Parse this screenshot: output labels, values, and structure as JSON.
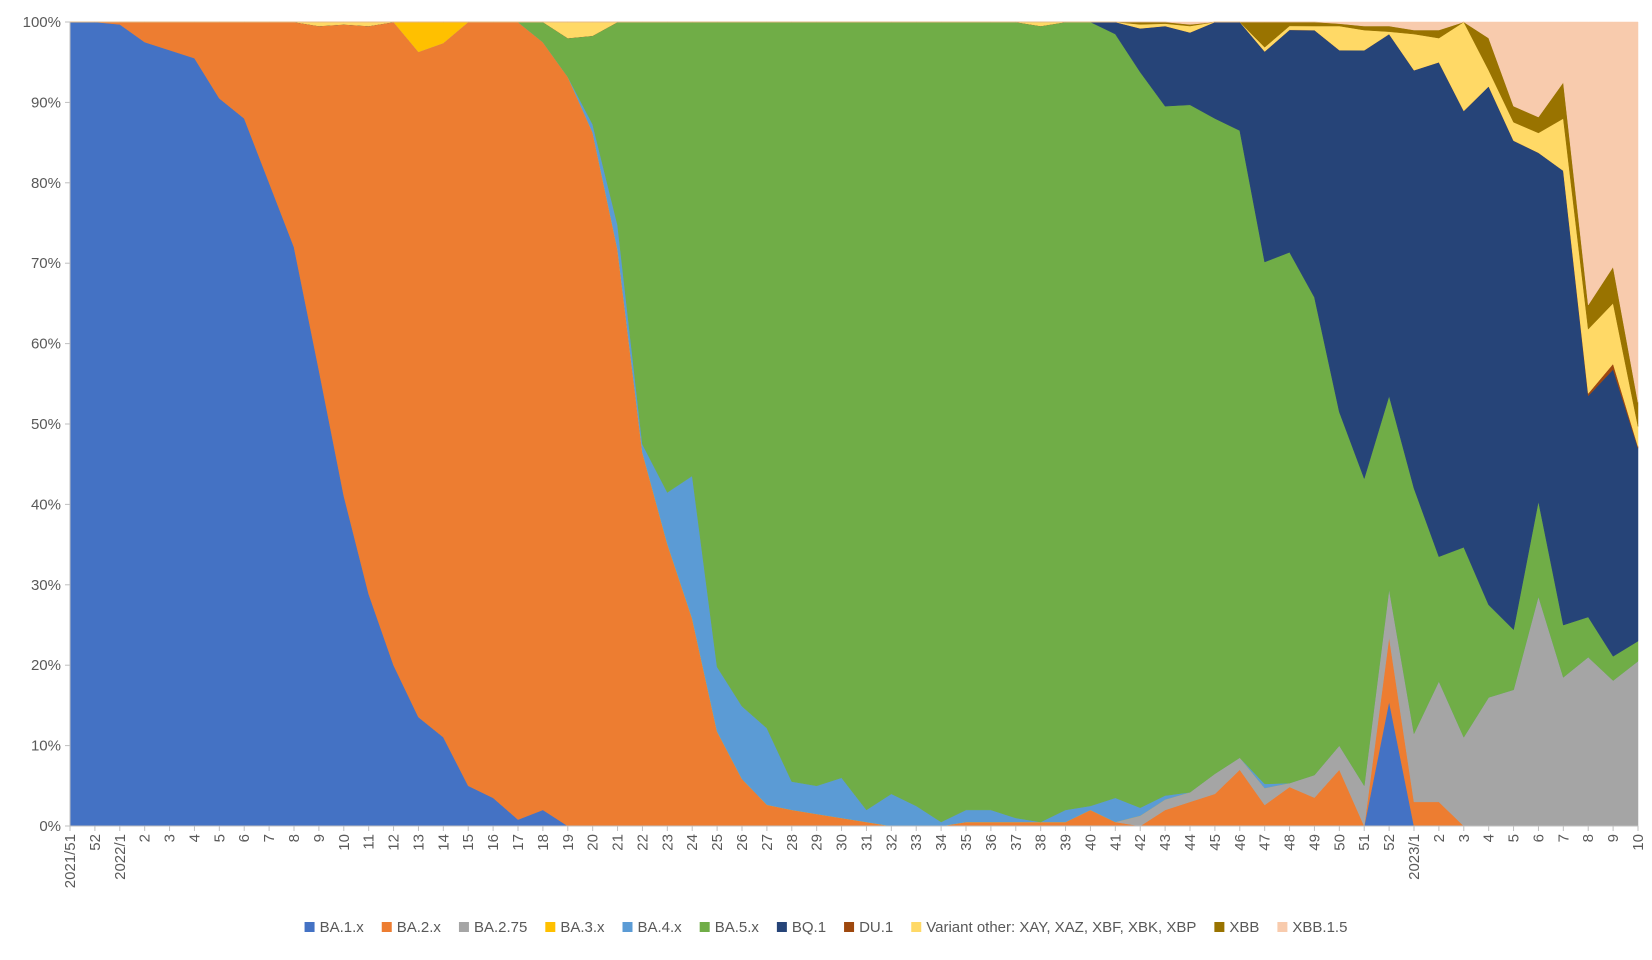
{
  "chart_data": {
    "type": "area",
    "stacked": true,
    "normalized_percent": true,
    "title": "",
    "xlabel": "",
    "ylabel": "",
    "ylim": [
      0,
      100
    ],
    "y_ticks": [
      "0%",
      "10%",
      "20%",
      "30%",
      "40%",
      "50%",
      "60%",
      "70%",
      "80%",
      "90%",
      "100%"
    ],
    "grid": false,
    "legend_position": "bottom",
    "x": [
      "2021/51",
      "52",
      "2022/1",
      "2",
      "3",
      "4",
      "5",
      "6",
      "7",
      "8",
      "9",
      "10",
      "11",
      "12",
      "13",
      "14",
      "15",
      "16",
      "17",
      "18",
      "19",
      "20",
      "21",
      "22",
      "23",
      "24",
      "25",
      "26",
      "27",
      "28",
      "29",
      "30",
      "31",
      "32",
      "33",
      "34",
      "35",
      "36",
      "37",
      "38",
      "39",
      "40",
      "41",
      "42",
      "43",
      "44",
      "45",
      "46",
      "47",
      "48",
      "49",
      "50",
      "51",
      "52",
      "2023/1",
      "2",
      "3",
      "4",
      "5",
      "6",
      "7",
      "8",
      "9",
      "10"
    ],
    "series": [
      {
        "name": "BA.1.x",
        "color": "#4472C4",
        "values": [
          100,
          100,
          99.5,
          97.5,
          96.5,
          95.5,
          90.5,
          88,
          80,
          72,
          57,
          41,
          29,
          20,
          13.5,
          11,
          5,
          3.5,
          0.8,
          2,
          0,
          0,
          0,
          0,
          0,
          0,
          0,
          0,
          0,
          0,
          0,
          0,
          0,
          0,
          0,
          0,
          0,
          0,
          0,
          0,
          0,
          0,
          0,
          0,
          0,
          0,
          0,
          0,
          0,
          0,
          0,
          0,
          0,
          15.5,
          0,
          0,
          0,
          0,
          0,
          0,
          0,
          0,
          0,
          0
        ]
      },
      {
        "name": "BA.2.x",
        "color": "#ED7D31",
        "values": [
          0,
          0,
          0.3,
          2.5,
          3.5,
          4.5,
          9.5,
          12,
          20,
          28,
          43,
          58.5,
          71,
          80,
          82.5,
          86,
          95,
          96.5,
          99.2,
          95.5,
          93,
          86,
          71,
          46,
          33,
          16,
          11,
          5.5,
          2.5,
          2,
          1.5,
          1,
          0.5,
          0,
          0,
          0,
          0.5,
          0.5,
          0.5,
          0.5,
          0.5,
          2,
          0.5,
          0,
          2,
          3,
          4,
          7,
          2.5,
          5,
          3.5,
          7,
          0,
          8,
          3,
          3,
          0,
          0,
          0,
          0,
          0,
          0,
          0,
          0
        ]
      },
      {
        "name": "BA.2.75",
        "color": "#A5A5A5",
        "values": [
          0,
          0,
          0,
          0,
          0,
          0,
          0,
          0,
          0,
          0,
          0,
          0,
          0,
          0,
          0,
          0,
          0,
          0,
          0,
          0,
          0,
          0,
          0,
          0,
          0,
          0,
          0,
          0,
          0,
          0,
          0,
          0,
          0,
          0,
          0,
          0,
          0,
          0,
          0,
          0,
          0,
          0,
          0,
          1.3,
          1.3,
          1.2,
          2.5,
          1.5,
          2,
          0.5,
          2.8,
          3,
          5,
          6,
          8.5,
          15,
          11,
          16,
          17,
          29,
          18.5,
          21,
          18,
          20.5
        ]
      },
      {
        "name": "BA.3.x",
        "color": "#FFC000",
        "values": [
          0,
          0,
          0,
          0,
          0,
          0,
          0,
          0,
          0,
          0,
          0,
          0,
          0,
          0,
          3.7,
          2.6,
          0,
          0,
          0,
          0,
          0,
          0,
          0,
          0,
          0,
          0,
          0,
          0,
          0,
          0,
          0,
          0,
          0,
          0,
          0,
          0,
          0,
          0,
          0,
          0,
          0,
          0,
          0,
          0,
          0,
          0,
          0,
          0,
          0,
          0,
          0,
          0,
          0,
          0,
          0,
          0,
          0,
          0,
          0,
          0,
          0,
          0,
          0,
          0
        ]
      },
      {
        "name": "BA.4.x",
        "color": "#5B9BD5",
        "values": [
          0,
          0,
          0,
          0,
          0,
          0,
          0,
          0,
          0,
          0,
          0,
          0,
          0,
          0,
          0,
          0,
          0,
          0,
          0,
          0,
          0,
          1,
          3,
          1,
          6,
          11,
          7.5,
          8.5,
          9,
          3.5,
          3.5,
          5,
          1.5,
          4,
          2.5,
          0.5,
          1.5,
          1.5,
          0.5,
          0,
          1.5,
          0.5,
          3,
          1,
          0.5,
          0,
          0,
          0,
          0.5,
          0,
          0,
          0,
          0,
          0,
          0,
          0,
          0,
          0,
          0,
          0,
          0,
          0,
          0,
          0
        ]
      },
      {
        "name": "BA.5.x",
        "color": "#70AD47",
        "values": [
          0,
          0,
          0,
          0,
          0,
          0,
          0,
          0,
          0,
          0,
          0,
          0,
          0,
          0,
          0,
          0,
          0,
          0,
          0,
          2.5,
          4.8,
          11,
          25,
          52,
          55,
          35,
          75,
          80,
          83,
          94,
          95,
          94,
          98,
          96,
          97.5,
          99.5,
          98,
          98,
          99,
          99.5,
          98,
          97.5,
          95,
          92.5,
          86,
          85.5,
          81.5,
          78,
          62,
          68,
          59,
          41.5,
          38,
          24,
          30.5,
          15.5,
          23.5,
          11.5,
          7.5,
          12,
          6.5,
          5,
          3,
          2.5
        ]
      },
      {
        "name": "BQ.1",
        "color": "#264478",
        "values": [
          0,
          0,
          0,
          0,
          0,
          0,
          0,
          0,
          0,
          0,
          0,
          0,
          0,
          0,
          0,
          0,
          0,
          0,
          0,
          0,
          0,
          0,
          0,
          0,
          0,
          0,
          0,
          0,
          0,
          0,
          0,
          0,
          0,
          0,
          0,
          0,
          0,
          0,
          0,
          0,
          0,
          0,
          1.5,
          5.5,
          10,
          9,
          12,
          13.5,
          25,
          28.5,
          33,
          45,
          53,
          45,
          52,
          61.5,
          54,
          64.5,
          61,
          44,
          56.5,
          27.5,
          35.5,
          24
        ]
      },
      {
        "name": "DU.1",
        "color": "#9E480E",
        "values": [
          0,
          0,
          0,
          0,
          0,
          0,
          0,
          0,
          0,
          0,
          0,
          0,
          0,
          0,
          0,
          0,
          0,
          0,
          0,
          0,
          0,
          0,
          0,
          0,
          0,
          0,
          0,
          0,
          0,
          0,
          0,
          0,
          0,
          0,
          0,
          0,
          0,
          0,
          0,
          0,
          0,
          0,
          0,
          0,
          0,
          0,
          0,
          0,
          0,
          0,
          0,
          0,
          0,
          0,
          0,
          0,
          0,
          0,
          0,
          0,
          0,
          0.3,
          0.7,
          0.2
        ]
      },
      {
        "name": "Variant other: XAY, XAZ, XBF, XBK, XBP",
        "color": "#FFD966",
        "values": [
          0,
          0,
          0,
          0,
          0,
          0,
          0,
          0,
          0,
          0,
          0.5,
          0.3,
          0.5,
          0,
          0,
          0,
          0,
          0,
          0,
          0,
          2,
          1.7,
          0,
          0,
          0,
          0,
          0,
          0,
          0,
          0,
          0,
          0,
          0,
          0,
          0,
          0,
          0,
          0,
          0,
          0.5,
          0,
          0,
          0,
          0.5,
          0.3,
          0.8,
          0,
          0,
          0.5,
          0.5,
          0.5,
          3,
          2.5,
          0.3,
          4.5,
          3,
          11,
          2,
          2.3,
          2.5,
          6.5,
          8,
          7.5,
          2.5
        ]
      },
      {
        "name": "XBB",
        "color": "#997300",
        "values": [
          0,
          0,
          0,
          0,
          0,
          0,
          0,
          0,
          0,
          0,
          0,
          0,
          0,
          0,
          0,
          0,
          0,
          0,
          0,
          0,
          0,
          0,
          0,
          0,
          0,
          0,
          0,
          0,
          0,
          0,
          0,
          0,
          0,
          0,
          0,
          0,
          0,
          0,
          0,
          0,
          0,
          0,
          0,
          0.3,
          0.2,
          0.2,
          0,
          0,
          3,
          0.5,
          0.5,
          0.3,
          0.5,
          0.7,
          0.5,
          1,
          0,
          4,
          2,
          2,
          4.5,
          3,
          4.5,
          3
        ]
      },
      {
        "name": "XBB.1.5",
        "color": "#F8CBAD",
        "values": [
          0,
          0,
          0,
          0,
          0,
          0,
          0,
          0,
          0,
          0,
          0,
          0,
          0,
          0,
          0,
          0,
          0,
          0,
          0,
          0,
          0,
          0,
          0,
          0,
          0,
          0,
          0,
          0,
          0,
          0,
          0,
          0,
          0,
          0,
          0,
          0,
          0,
          0,
          0,
          0,
          0,
          0,
          0,
          0,
          0,
          0.3,
          0,
          0,
          0,
          0,
          0,
          0.2,
          0.5,
          0.5,
          1,
          1,
          0,
          2,
          10.5,
          12,
          7.5,
          35.2,
          30.3,
          47.3
        ]
      }
    ]
  }
}
